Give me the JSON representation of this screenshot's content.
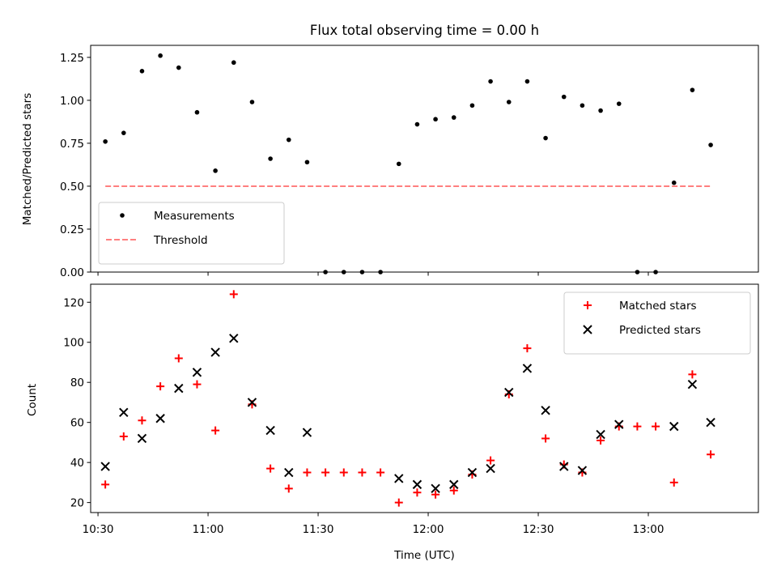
{
  "chart_data": [
    {
      "type": "scatter",
      "title": "Flux total observing time = 0.00 h",
      "xlabel": "",
      "ylabel": "Matched/Predicted stars",
      "ylim": [
        0.0,
        1.32
      ],
      "yticks": [
        "0.00",
        "0.25",
        "0.50",
        "0.75",
        "1.00",
        "1.25"
      ],
      "xlim": [
        "10:28",
        "13:30"
      ],
      "x_tick_positions": [
        "10:30",
        "11:00",
        "11:30",
        "12:00",
        "12:30",
        "13:00"
      ],
      "series": [
        {
          "name": "Measurements",
          "marker": "dot",
          "color": "#000000",
          "x": [
            "10:32",
            "10:37",
            "10:42",
            "10:47",
            "10:52",
            "10:57",
            "11:02",
            "11:07",
            "11:12",
            "11:17",
            "11:22",
            "11:27",
            "11:32",
            "11:37",
            "11:42",
            "11:47",
            "11:52",
            "11:57",
            "12:02",
            "12:07",
            "12:12",
            "12:17",
            "12:22",
            "12:27",
            "12:32",
            "12:37",
            "12:42",
            "12:47",
            "12:52",
            "12:57",
            "13:02",
            "13:07",
            "13:12",
            "13:17"
          ],
          "y": [
            0.76,
            0.81,
            1.17,
            1.26,
            1.19,
            0.93,
            0.59,
            1.22,
            0.99,
            0.66,
            0.77,
            0.64,
            0.0,
            0.0,
            0.0,
            0.0,
            0.63,
            0.86,
            0.89,
            0.9,
            0.97,
            1.11,
            0.99,
            1.11,
            0.78,
            1.02,
            0.97,
            0.94,
            0.98,
            0.0,
            0.0,
            0.52,
            1.06,
            0.74
          ]
        },
        {
          "name": "Threshold",
          "line": "dashed",
          "color": "#ff7f7f",
          "x": [
            "10:32",
            "13:17"
          ],
          "y": [
            0.5,
            0.5
          ]
        }
      ],
      "legend_position": "lower-left",
      "grid": false
    },
    {
      "type": "scatter",
      "title": "",
      "xlabel": "Time (UTC)",
      "ylabel": "Count",
      "ylim": [
        15,
        129
      ],
      "yticks": [
        "20",
        "40",
        "60",
        "80",
        "100",
        "120"
      ],
      "xlim": [
        "10:28",
        "13:30"
      ],
      "xticks": [
        "10:30",
        "11:00",
        "11:30",
        "12:00",
        "12:30",
        "13:00"
      ],
      "series": [
        {
          "name": "Matched stars",
          "marker": "plus",
          "color": "#ff0000",
          "x": [
            "10:32",
            "10:37",
            "10:42",
            "10:47",
            "10:52",
            "10:57",
            "11:02",
            "11:07",
            "11:12",
            "11:17",
            "11:22",
            "11:27",
            "11:32",
            "11:37",
            "11:42",
            "11:47",
            "11:52",
            "11:57",
            "12:02",
            "12:07",
            "12:12",
            "12:17",
            "12:22",
            "12:27",
            "12:32",
            "12:37",
            "12:42",
            "12:47",
            "12:52",
            "12:57",
            "13:02",
            "13:07",
            "13:12",
            "13:17"
          ],
          "y": [
            29,
            53,
            61,
            78,
            92,
            79,
            56,
            124,
            69,
            37,
            27,
            35,
            35,
            35,
            35,
            35,
            20,
            25,
            24,
            26,
            34,
            41,
            74,
            97,
            52,
            39,
            35,
            51,
            58,
            58,
            58,
            30,
            84,
            44
          ]
        },
        {
          "name": "Predicted stars",
          "marker": "x",
          "color": "#000000",
          "x": [
            "10:32",
            "10:37",
            "10:42",
            "10:47",
            "10:52",
            "10:57",
            "11:02",
            "11:07",
            "11:12",
            "11:17",
            "11:22",
            "11:27",
            "11:52",
            "11:57",
            "12:02",
            "12:07",
            "12:12",
            "12:17",
            "12:22",
            "12:27",
            "12:32",
            "12:37",
            "12:42",
            "12:47",
            "12:52",
            "13:07",
            "13:12",
            "13:17"
          ],
          "y": [
            38,
            65,
            52,
            62,
            77,
            85,
            95,
            102,
            70,
            56,
            35,
            55,
            32,
            29,
            27,
            29,
            35,
            37,
            75,
            87,
            66,
            38,
            36,
            54,
            59,
            58,
            79,
            60
          ]
        }
      ],
      "legend_position": "upper-right",
      "grid": false
    }
  ]
}
